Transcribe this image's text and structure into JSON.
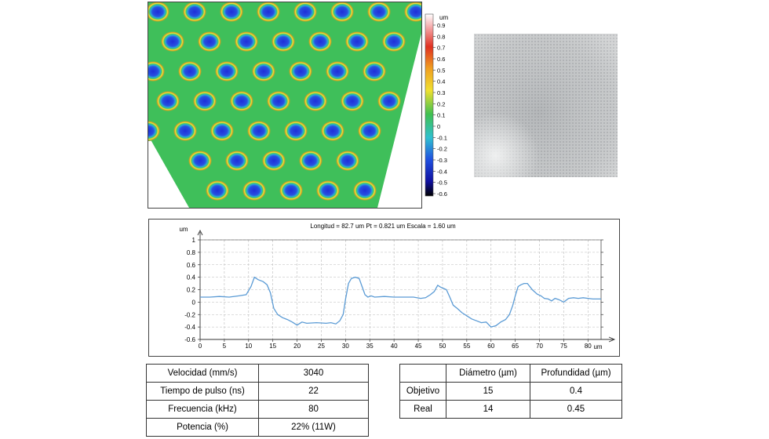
{
  "colorbar": {
    "unit": "um",
    "ticks": [
      "0.9",
      "0.8",
      "0.7",
      "0.6",
      "0.5",
      "0.4",
      "0.3",
      "0.2",
      "0.1",
      "0",
      "-0.1",
      "-0.2",
      "-0.3",
      "-0.4",
      "-0.5",
      "-0.6"
    ]
  },
  "chart_data": {
    "type": "line",
    "title": "Longitud = 82.7 um  Pt = 0.821 um  Escala = 1.60 um",
    "ylabel": "um",
    "xlabel": "um",
    "xlim": [
      0,
      82.7
    ],
    "ylim": [
      -0.6,
      1
    ],
    "xticks": [
      "0",
      "5",
      "10",
      "15",
      "20",
      "25",
      "30",
      "35",
      "40",
      "45",
      "50",
      "55",
      "60",
      "65",
      "70",
      "75",
      "80"
    ],
    "yticks": [
      "1",
      "0.8",
      "0.6",
      "0.4",
      "0.2",
      "0",
      "-0.2",
      "-0.4",
      "-0.6"
    ],
    "grid": true,
    "legend": "none",
    "color": "#5b9bd5",
    "x": [
      0,
      2,
      4,
      6,
      8,
      9.5,
      10.5,
      11.2,
      12,
      13,
      13.8,
      14.5,
      15.2,
      16,
      17,
      18,
      19,
      20,
      21,
      22,
      24,
      26,
      27,
      28,
      28.8,
      29.5,
      30,
      30.6,
      31.2,
      32,
      32.8,
      33.4,
      34,
      34.6,
      35.3,
      36,
      38,
      40,
      42,
      44,
      45.5,
      46.5,
      47.5,
      48.3,
      49,
      49.6,
      50.2,
      50.8,
      51.5,
      52.2,
      53,
      54,
      55,
      56,
      57,
      58,
      59,
      60,
      61,
      62,
      63,
      63.8,
      64.5,
      65,
      65.6,
      66.2,
      66.8,
      67.5,
      68.5,
      69.5,
      70.3,
      71,
      71.8,
      72.5,
      73.2,
      74,
      75,
      76,
      77,
      78,
      79,
      80,
      81,
      82.7
    ],
    "y": [
      0.08,
      0.08,
      0.09,
      0.08,
      0.1,
      0.12,
      0.25,
      0.4,
      0.36,
      0.33,
      0.28,
      0.15,
      -0.1,
      -0.2,
      -0.25,
      -0.28,
      -0.32,
      -0.37,
      -0.32,
      -0.34,
      -0.33,
      -0.34,
      -0.33,
      -0.35,
      -0.3,
      -0.2,
      0.05,
      0.3,
      0.38,
      0.4,
      0.38,
      0.25,
      0.12,
      0.08,
      0.1,
      0.08,
      0.09,
      0.08,
      0.08,
      0.08,
      0.06,
      0.07,
      0.12,
      0.17,
      0.27,
      0.24,
      0.22,
      0.2,
      0.08,
      -0.05,
      -0.1,
      -0.17,
      -0.22,
      -0.27,
      -0.3,
      -0.33,
      -0.32,
      -0.4,
      -0.38,
      -0.32,
      -0.28,
      -0.2,
      -0.05,
      0.1,
      0.25,
      0.28,
      0.3,
      0.3,
      0.2,
      0.13,
      0.1,
      0.06,
      0.05,
      0.02,
      0.06,
      0.04,
      0.0,
      0.06,
      0.07,
      0.06,
      0.07,
      0.06,
      0.05,
      0.05
    ]
  },
  "params_table": [
    {
      "label": "Velocidad (mm/s)",
      "value": "3040"
    },
    {
      "label": "Tiempo de pulso (ns)",
      "value": "22"
    },
    {
      "label": "Frecuencia (kHz)",
      "value": "80"
    },
    {
      "label": "Potencia (%)",
      "value": "22% (11W)"
    }
  ],
  "results_table": {
    "headers": [
      "",
      "Diámetro (µm)",
      "Profundidad (µm)"
    ],
    "rows": [
      [
        "Objetivo",
        "15",
        "0.4"
      ],
      [
        "Real",
        "14",
        "0.45"
      ]
    ]
  }
}
